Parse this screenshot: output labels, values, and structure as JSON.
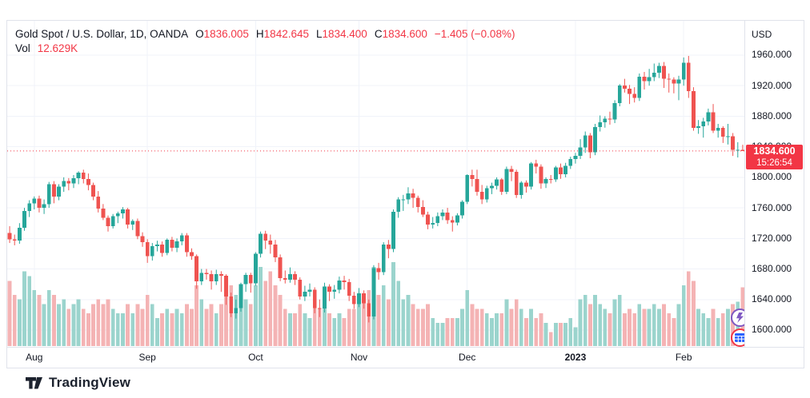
{
  "header": {
    "title": "Gold Spot / U.S. Dollar, 1D, OANDA",
    "open_label": "O",
    "open": "1836.005",
    "high_label": "H",
    "high": "1842.645",
    "low_label": "L",
    "low": "1834.400",
    "close_label": "C",
    "close": "1834.600",
    "change": "−1.405 (−0.08%)",
    "volume_label": "Vol",
    "volume": "12.629K"
  },
  "price_axis": {
    "currency": "USD",
    "ticks": [
      1960,
      1920,
      1880,
      1840,
      1800,
      1760,
      1720,
      1680,
      1640,
      1600
    ],
    "last_price": "1834.600",
    "last_time": "15:26:54"
  },
  "time_axis": {
    "ticks": [
      {
        "label": "Aug",
        "index": 5,
        "bold": false
      },
      {
        "label": "Sep",
        "index": 28,
        "bold": false
      },
      {
        "label": "Oct",
        "index": 50,
        "bold": false
      },
      {
        "label": "Nov",
        "index": 71,
        "bold": false
      },
      {
        "label": "Dec",
        "index": 93,
        "bold": false
      },
      {
        "label": "2023",
        "index": 115,
        "bold": true
      },
      {
        "label": "Feb",
        "index": 137,
        "bold": false
      }
    ]
  },
  "footer": {
    "brand": "TradingView"
  },
  "colors": {
    "up": "#26a69a",
    "down": "#ef5350",
    "vol_up": "#9bd4cd",
    "vol_down": "#f4b3b4",
    "grid": "#f0f3fa",
    "border": "#e0e3eb",
    "accent_red": "#f23645",
    "text": "#131722",
    "purple": "#7e57c2",
    "blue": "#2962ff"
  },
  "chart_data": {
    "type": "candlestick",
    "title": "Gold Spot / U.S. Dollar",
    "interval": "1D",
    "exchange": "OANDA",
    "unit": "USD",
    "price_range": [
      1578,
      2005
    ],
    "volume_unit": "K",
    "columns": [
      "open",
      "high",
      "low",
      "close",
      "volume_k"
    ],
    "candles": [
      [
        1727,
        1736,
        1714,
        1719,
        14
      ],
      [
        1719,
        1725,
        1711,
        1717,
        11
      ],
      [
        1717,
        1740,
        1713,
        1734,
        10
      ],
      [
        1734,
        1760,
        1730,
        1756,
        16
      ],
      [
        1756,
        1770,
        1748,
        1766,
        15
      ],
      [
        1766,
        1775,
        1758,
        1772,
        12
      ],
      [
        1772,
        1776,
        1754,
        1760,
        11
      ],
      [
        1760,
        1771,
        1752,
        1765,
        9
      ],
      [
        1765,
        1794,
        1760,
        1791,
        12
      ],
      [
        1791,
        1795,
        1766,
        1775,
        11
      ],
      [
        1775,
        1791,
        1770,
        1788,
        9
      ],
      [
        1788,
        1800,
        1781,
        1795,
        10
      ],
      [
        1795,
        1799,
        1783,
        1792,
        8
      ],
      [
        1792,
        1803,
        1786,
        1799,
        9
      ],
      [
        1799,
        1808,
        1791,
        1806,
        10
      ],
      [
        1806,
        1810,
        1792,
        1798,
        8
      ],
      [
        1798,
        1805,
        1783,
        1790,
        7
      ],
      [
        1790,
        1793,
        1770,
        1775,
        9
      ],
      [
        1775,
        1782,
        1754,
        1759,
        10
      ],
      [
        1759,
        1765,
        1744,
        1747,
        9
      ],
      [
        1747,
        1750,
        1729,
        1736,
        10
      ],
      [
        1736,
        1752,
        1733,
        1749,
        8
      ],
      [
        1749,
        1755,
        1740,
        1753,
        7
      ],
      [
        1753,
        1761,
        1746,
        1758,
        7
      ],
      [
        1758,
        1760,
        1733,
        1738,
        9
      ],
      [
        1738,
        1745,
        1731,
        1743,
        7
      ],
      [
        1743,
        1746,
        1719,
        1723,
        9
      ],
      [
        1723,
        1728,
        1709,
        1715,
        8
      ],
      [
        1715,
        1719,
        1688,
        1697,
        11
      ],
      [
        1697,
        1714,
        1691,
        1710,
        9
      ],
      [
        1710,
        1717,
        1703,
        1712,
        6
      ],
      [
        1712,
        1716,
        1696,
        1701,
        7
      ],
      [
        1701,
        1720,
        1698,
        1718,
        8
      ],
      [
        1718,
        1722,
        1703,
        1708,
        7
      ],
      [
        1708,
        1720,
        1702,
        1716,
        8
      ],
      [
        1716,
        1727,
        1711,
        1724,
        7
      ],
      [
        1724,
        1727,
        1696,
        1702,
        9
      ],
      [
        1702,
        1707,
        1692,
        1697,
        8
      ],
      [
        1697,
        1699,
        1654,
        1664,
        13
      ],
      [
        1664,
        1680,
        1659,
        1675,
        10
      ],
      [
        1675,
        1680,
        1666,
        1673,
        8
      ],
      [
        1673,
        1678,
        1653,
        1664,
        9
      ],
      [
        1664,
        1679,
        1659,
        1673,
        7
      ],
      [
        1673,
        1677,
        1650,
        1671,
        9
      ],
      [
        1671,
        1673,
        1633,
        1644,
        12
      ],
      [
        1644,
        1649,
        1617,
        1622,
        13
      ],
      [
        1622,
        1640,
        1615,
        1629,
        11
      ],
      [
        1629,
        1662,
        1624,
        1660,
        12
      ],
      [
        1660,
        1675,
        1650,
        1672,
        10
      ],
      [
        1672,
        1675,
        1649,
        1661,
        9
      ],
      [
        1661,
        1702,
        1658,
        1700,
        13
      ],
      [
        1700,
        1729,
        1695,
        1726,
        17
      ],
      [
        1726,
        1730,
        1706,
        1717,
        14
      ],
      [
        1717,
        1725,
        1700,
        1712,
        16
      ],
      [
        1712,
        1718,
        1689,
        1695,
        13
      ],
      [
        1695,
        1699,
        1664,
        1668,
        11
      ],
      [
        1668,
        1678,
        1661,
        1666,
        8
      ],
      [
        1666,
        1682,
        1662,
        1673,
        7
      ],
      [
        1673,
        1677,
        1659,
        1666,
        7
      ],
      [
        1666,
        1669,
        1640,
        1644,
        9
      ],
      [
        1644,
        1658,
        1638,
        1650,
        7
      ],
      [
        1650,
        1661,
        1644,
        1653,
        6
      ],
      [
        1653,
        1656,
        1622,
        1629,
        9
      ],
      [
        1629,
        1640,
        1617,
        1628,
        8
      ],
      [
        1628,
        1662,
        1623,
        1657,
        10
      ],
      [
        1657,
        1660,
        1638,
        1650,
        7
      ],
      [
        1650,
        1659,
        1641,
        1653,
        6
      ],
      [
        1653,
        1670,
        1648,
        1665,
        7
      ],
      [
        1665,
        1671,
        1653,
        1663,
        6
      ],
      [
        1663,
        1667,
        1638,
        1645,
        8
      ],
      [
        1645,
        1650,
        1628,
        1634,
        8
      ],
      [
        1634,
        1655,
        1630,
        1648,
        9
      ],
      [
        1648,
        1652,
        1628,
        1635,
        10
      ],
      [
        1635,
        1640,
        1610,
        1618,
        12
      ],
      [
        1618,
        1685,
        1614,
        1681,
        17
      ],
      [
        1681,
        1688,
        1666,
        1676,
        11
      ],
      [
        1676,
        1715,
        1672,
        1712,
        13
      ],
      [
        1712,
        1718,
        1694,
        1706,
        10
      ],
      [
        1706,
        1758,
        1702,
        1755,
        18
      ],
      [
        1755,
        1774,
        1747,
        1771,
        14
      ],
      [
        1771,
        1777,
        1756,
        1771,
        10
      ],
      [
        1771,
        1787,
        1765,
        1779,
        11
      ],
      [
        1779,
        1785,
        1760,
        1773,
        9
      ],
      [
        1773,
        1776,
        1754,
        1761,
        8
      ],
      [
        1761,
        1770,
        1748,
        1751,
        8
      ],
      [
        1751,
        1755,
        1732,
        1738,
        9
      ],
      [
        1738,
        1748,
        1733,
        1740,
        6
      ],
      [
        1740,
        1754,
        1736,
        1749,
        5
      ],
      [
        1749,
        1758,
        1744,
        1754,
        5
      ],
      [
        1754,
        1760,
        1739,
        1744,
        6
      ],
      [
        1744,
        1749,
        1729,
        1741,
        6
      ],
      [
        1741,
        1753,
        1737,
        1750,
        6
      ],
      [
        1750,
        1770,
        1746,
        1768,
        8
      ],
      [
        1768,
        1804,
        1765,
        1803,
        12
      ],
      [
        1803,
        1810,
        1788,
        1798,
        9
      ],
      [
        1798,
        1810,
        1776,
        1781,
        8
      ],
      [
        1781,
        1790,
        1765,
        1771,
        8
      ],
      [
        1771,
        1789,
        1767,
        1786,
        7
      ],
      [
        1786,
        1793,
        1778,
        1789,
        6
      ],
      [
        1789,
        1800,
        1784,
        1797,
        7
      ],
      [
        1797,
        1799,
        1777,
        1781,
        7
      ],
      [
        1781,
        1814,
        1778,
        1811,
        10
      ],
      [
        1811,
        1815,
        1795,
        1807,
        8
      ],
      [
        1807,
        1810,
        1773,
        1777,
        10
      ],
      [
        1777,
        1795,
        1772,
        1793,
        8
      ],
      [
        1793,
        1796,
        1780,
        1788,
        6
      ],
      [
        1788,
        1820,
        1784,
        1818,
        8
      ],
      [
        1818,
        1823,
        1805,
        1814,
        6
      ],
      [
        1814,
        1817,
        1785,
        1792,
        7
      ],
      [
        1792,
        1800,
        1786,
        1798,
        5
      ],
      [
        1798,
        1803,
        1792,
        1797,
        3
      ],
      [
        1797,
        1815,
        1794,
        1813,
        5
      ],
      [
        1813,
        1818,
        1798,
        1804,
        5
      ],
      [
        1804,
        1819,
        1800,
        1815,
        5
      ],
      [
        1815,
        1827,
        1811,
        1824,
        6
      ],
      [
        1824,
        1832,
        1818,
        1828,
        4
      ],
      [
        1828,
        1850,
        1824,
        1839,
        10
      ],
      [
        1839,
        1860,
        1832,
        1855,
        11
      ],
      [
        1855,
        1858,
        1825,
        1833,
        9
      ],
      [
        1833,
        1870,
        1829,
        1866,
        11
      ],
      [
        1866,
        1881,
        1860,
        1872,
        9
      ],
      [
        1872,
        1880,
        1865,
        1877,
        8
      ],
      [
        1877,
        1886,
        1869,
        1876,
        7
      ],
      [
        1876,
        1901,
        1871,
        1897,
        10
      ],
      [
        1897,
        1922,
        1893,
        1920,
        11
      ],
      [
        1920,
        1929,
        1911,
        1916,
        7
      ],
      [
        1916,
        1921,
        1896,
        1909,
        8
      ],
      [
        1909,
        1918,
        1898,
        1904,
        7
      ],
      [
        1904,
        1936,
        1900,
        1932,
        9
      ],
      [
        1932,
        1938,
        1915,
        1926,
        8
      ],
      [
        1926,
        1942,
        1920,
        1931,
        8
      ],
      [
        1931,
        1949,
        1926,
        1937,
        9
      ],
      [
        1937,
        1950,
        1930,
        1946,
        8
      ],
      [
        1946,
        1951,
        1917,
        1929,
        9
      ],
      [
        1929,
        1936,
        1911,
        1928,
        7
      ],
      [
        1928,
        1931,
        1910,
        1923,
        6
      ],
      [
        1923,
        1933,
        1901,
        1928,
        9
      ],
      [
        1928,
        1957,
        1920,
        1950,
        13
      ],
      [
        1950,
        1959,
        1904,
        1913,
        16
      ],
      [
        1913,
        1918,
        1861,
        1865,
        14
      ],
      [
        1865,
        1875,
        1857,
        1867,
        8
      ],
      [
        1867,
        1878,
        1852,
        1873,
        7
      ],
      [
        1873,
        1890,
        1868,
        1885,
        6
      ],
      [
        1885,
        1896,
        1858,
        1861,
        8
      ],
      [
        1861,
        1870,
        1852,
        1865,
        6
      ],
      [
        1865,
        1867,
        1845,
        1853,
        7
      ],
      [
        1853,
        1870,
        1843,
        1854,
        8
      ],
      [
        1854,
        1858,
        1828,
        1836,
        9
      ],
      [
        1836,
        1846,
        1826,
        1836,
        9.5
      ],
      [
        1836.005,
        1842.645,
        1834.4,
        1834.6,
        12.629
      ]
    ]
  }
}
